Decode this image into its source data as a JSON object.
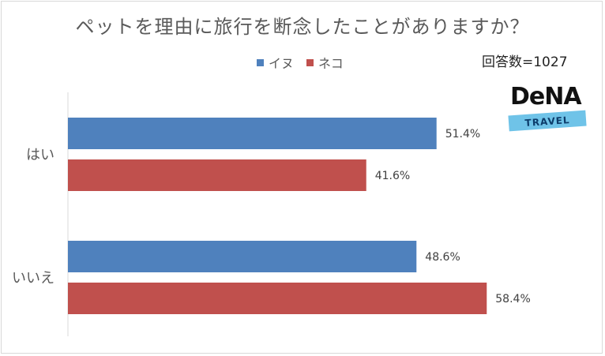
{
  "chart_data": {
    "type": "bar",
    "orientation": "horizontal",
    "title": "ペットを理由に旅行を断念したことがありますか？",
    "categories": [
      "はい",
      "いいえ"
    ],
    "series": [
      {
        "name": "イヌ",
        "color": "#4f81bd",
        "values": [
          51.4,
          48.6
        ],
        "labels": [
          "51.4%",
          "48.6%"
        ]
      },
      {
        "name": "ネコ",
        "color": "#c0504d",
        "values": [
          41.6,
          58.4
        ],
        "labels": [
          "41.6%",
          "58.4%"
        ]
      }
    ],
    "xlim": [
      0,
      70
    ],
    "grid": false,
    "legend_position": "top"
  },
  "respondents": "回答数=1027",
  "logo": {
    "brand": "DeNA",
    "sub": "TRAVEL"
  }
}
